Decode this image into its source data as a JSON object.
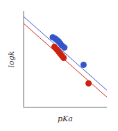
{
  "chart_data": {
    "type": "scatter",
    "xlabel": "pKa",
    "ylabel": "logk",
    "xlim": [
      0,
      10
    ],
    "ylim": [
      -8,
      6
    ],
    "tick_labels": false,
    "series": [
      {
        "type": "line",
        "color": "#3355cc",
        "x": [
          0,
          10
        ],
        "values": [
          5.2,
          -5.5
        ]
      },
      {
        "type": "line",
        "color": "#cc2211",
        "x": [
          0,
          10
        ],
        "values": [
          4.2,
          -6.5
        ]
      },
      {
        "type": "scatter",
        "color": "#3355cc",
        "x": [
          3.5,
          3.8,
          4.0,
          4.2,
          4.4,
          4.6,
          4.9,
          7.2
        ],
        "values": [
          2.2,
          2.0,
          1.8,
          1.6,
          1.3,
          1.0,
          0.7,
          -1.8
        ]
      },
      {
        "type": "scatter",
        "color": "#cc2211",
        "x": [
          3.7,
          4.0,
          4.2,
          4.4,
          4.6,
          4.8,
          7.8
        ],
        "values": [
          0.8,
          0.4,
          0.1,
          -0.2,
          -0.5,
          -0.8,
          -4.5
        ]
      }
    ]
  }
}
